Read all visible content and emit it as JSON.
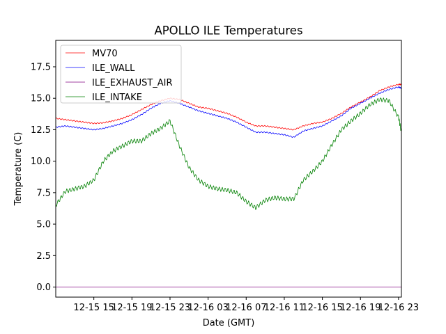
{
  "chart_data": {
    "type": "line",
    "title": "APOLLO ILE Temperatures",
    "xlabel": "Date (GMT)",
    "ylabel": "Temperature (C)",
    "x_unit": "hours since 2012-12-15 11:00 GMT",
    "xlim": [
      0,
      36.3
    ],
    "ylim": [
      -0.8,
      19.6
    ],
    "x_ticks": [
      {
        "value": 4,
        "label": "12-15 15"
      },
      {
        "value": 8,
        "label": "12-15 19"
      },
      {
        "value": 12,
        "label": "12-15 23"
      },
      {
        "value": 16,
        "label": "12-16 03"
      },
      {
        "value": 20,
        "label": "12-16 07"
      },
      {
        "value": 24,
        "label": "12-16 11"
      },
      {
        "value": 28,
        "label": "12-16 15"
      },
      {
        "value": 32,
        "label": "12-16 19"
      },
      {
        "value": 36,
        "label": "12-16 23"
      }
    ],
    "y_ticks": [
      {
        "value": 0.0,
        "label": "0.0"
      },
      {
        "value": 2.5,
        "label": "2.5"
      },
      {
        "value": 5.0,
        "label": "5.0"
      },
      {
        "value": 7.5,
        "label": "7.5"
      },
      {
        "value": 10.0,
        "label": "10.0"
      },
      {
        "value": 12.5,
        "label": "12.5"
      },
      {
        "value": 15.0,
        "label": "15.0"
      },
      {
        "value": 17.5,
        "label": "17.5"
      }
    ],
    "legend_position": "top-left",
    "grid": false,
    "x": [
      0,
      1,
      2,
      3,
      4,
      5,
      6,
      7,
      8,
      9,
      10,
      11,
      12,
      13,
      14,
      15,
      16,
      17,
      18,
      19,
      20,
      21,
      22,
      23,
      24,
      25,
      26,
      27,
      28,
      29,
      30,
      31,
      32,
      33,
      34,
      35,
      36,
      36.3
    ],
    "series": [
      {
        "name": "MV70",
        "color": "#ff0000",
        "values": [
          13.4,
          13.3,
          13.2,
          13.1,
          13.0,
          13.05,
          13.2,
          13.4,
          13.7,
          14.1,
          14.5,
          14.8,
          15.0,
          14.9,
          14.6,
          14.3,
          14.2,
          14.0,
          13.8,
          13.5,
          13.1,
          12.8,
          12.8,
          12.7,
          12.6,
          12.5,
          12.8,
          13.0,
          13.1,
          13.4,
          13.8,
          14.3,
          14.7,
          15.1,
          15.6,
          15.9,
          16.1,
          16.1
        ]
      },
      {
        "name": "ILE_WALL",
        "color": "#0000ff",
        "values": [
          12.7,
          12.8,
          12.7,
          12.6,
          12.5,
          12.6,
          12.8,
          13.0,
          13.3,
          13.7,
          14.2,
          14.6,
          14.8,
          14.6,
          14.3,
          14.0,
          13.8,
          13.6,
          13.4,
          13.1,
          12.7,
          12.3,
          12.3,
          12.2,
          12.1,
          11.9,
          12.4,
          12.6,
          12.8,
          13.2,
          13.6,
          14.2,
          14.6,
          15.0,
          15.4,
          15.7,
          15.9,
          15.8
        ]
      },
      {
        "name": "ILE_EXHAUST_AIR",
        "color": "#800080",
        "values": [
          0,
          0,
          0,
          0,
          0,
          0,
          0,
          0,
          0,
          0,
          0,
          0,
          0,
          0,
          0,
          0,
          0,
          0,
          0,
          0,
          0,
          0,
          0,
          0,
          0,
          0,
          0,
          0,
          0,
          0,
          0,
          0,
          0,
          0,
          0,
          0,
          0,
          0
        ]
      },
      {
        "name": "ILE_INTAKE",
        "color": "#008000",
        "values": [
          6.5,
          7.6,
          7.8,
          8.0,
          8.5,
          10.0,
          10.8,
          11.2,
          11.6,
          11.6,
          12.2,
          12.6,
          13.2,
          11.2,
          9.5,
          8.5,
          8.0,
          7.8,
          7.7,
          7.5,
          6.8,
          6.3,
          6.9,
          7.1,
          7.0,
          7.0,
          8.5,
          9.2,
          10.0,
          11.3,
          12.5,
          13.2,
          13.8,
          14.5,
          14.9,
          14.8,
          13.5,
          12.3
        ]
      }
    ]
  }
}
